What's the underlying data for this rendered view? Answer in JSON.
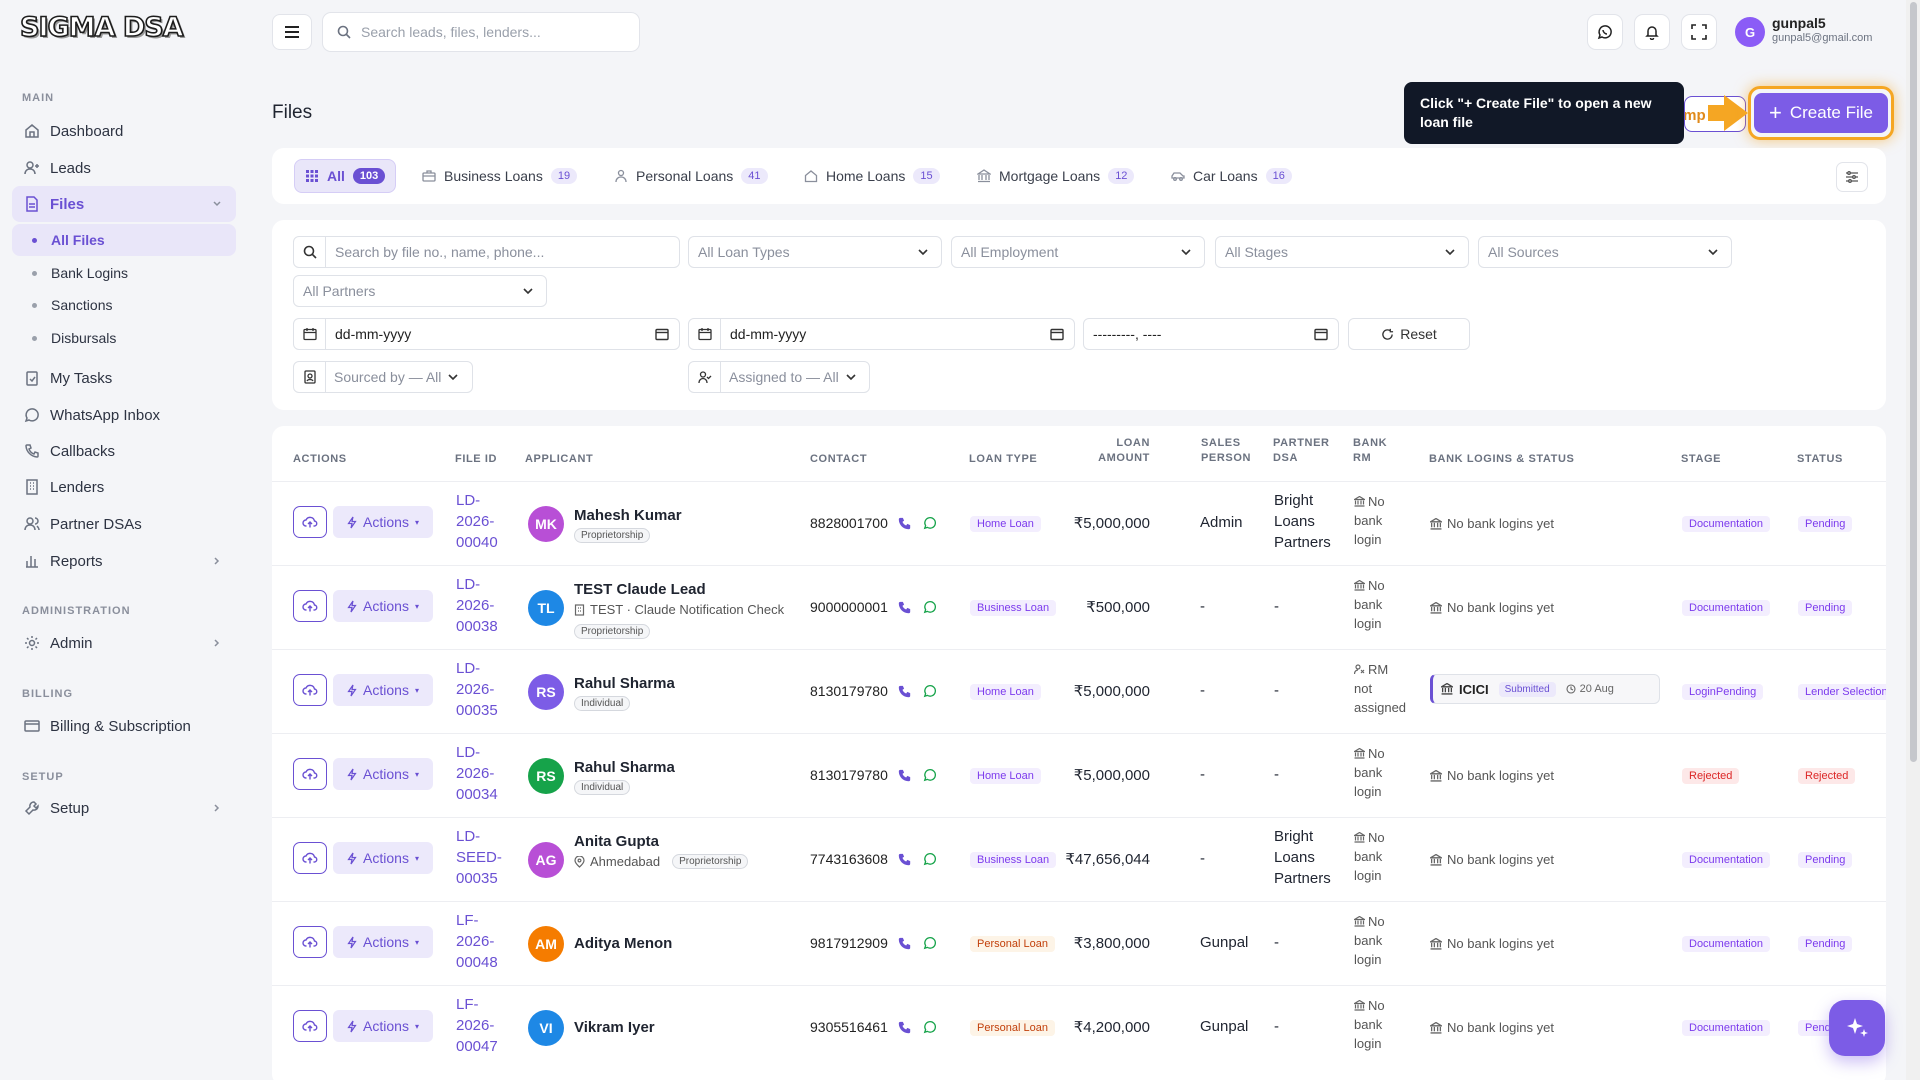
{
  "brand": {
    "logo_text": "SIGMA DSA"
  },
  "sidebar": {
    "sections": {
      "main": "MAIN",
      "administration": "ADMINISTRATION",
      "billing": "BILLING",
      "setup": "SETUP"
    },
    "items": {
      "dashboard": "Dashboard",
      "leads": "Leads",
      "files": "Files",
      "all_files": "All Files",
      "bank_logins": "Bank Logins",
      "sanctions": "Sanctions",
      "disbursals": "Disbursals",
      "my_tasks": "My Tasks",
      "whatsapp_inbox": "WhatsApp Inbox",
      "callbacks": "Callbacks",
      "lenders": "Lenders",
      "partner_dsas": "Partner DSAs",
      "reports": "Reports",
      "admin": "Admin",
      "billing_subscription": "Billing & Subscription",
      "setup": "Setup"
    }
  },
  "topbar": {
    "search_placeholder": "Search leads, files, lenders...",
    "user": {
      "initial": "G",
      "name": "gunpal5",
      "email": "gunpal5@gmail.com"
    }
  },
  "page": {
    "title": "Files",
    "import_label": "Imp",
    "create_label": "Create File",
    "tooltip": "Click \"+ Create File\" to open a new loan file"
  },
  "tabs": [
    {
      "label": "All",
      "count": "103"
    },
    {
      "label": "Business Loans",
      "count": "19"
    },
    {
      "label": "Personal Loans",
      "count": "41"
    },
    {
      "label": "Home Loans",
      "count": "15"
    },
    {
      "label": "Mortgage Loans",
      "count": "12"
    },
    {
      "label": "Car Loans",
      "count": "16"
    }
  ],
  "filters": {
    "search_placeholder": "Search by file no., name, phone...",
    "loan_types": "All Loan Types",
    "employment": "All Employment",
    "stages": "All Stages",
    "sources": "All Sources",
    "partners": "All Partners",
    "date_from": "dd-mm-yyyy",
    "date_to": "dd-mm-yyyy",
    "month": "---------, ----",
    "reset": "Reset",
    "sourced_by": "Sourced by — All",
    "assigned_to": "Assigned to — All"
  },
  "table": {
    "headers": {
      "actions": "ACTIONS",
      "file_id": "FILE ID",
      "applicant": "APPLICANT",
      "contact": "CONTACT",
      "loan_type": "LOAN TYPE",
      "loan_amount_1": "LOAN",
      "loan_amount_2": "AMOUNT",
      "sales_person_1": "SALES",
      "sales_person_2": "PERSON",
      "partner_dsa_1": "PARTNER",
      "partner_dsa_2": "DSA",
      "bank_rm_1": "BANK",
      "bank_rm_2": "RM",
      "bank_logins_status": "BANK LOGINS & STATUS",
      "stage": "STAGE",
      "status": "STATUS"
    },
    "actions_label": "Actions",
    "rows": [
      {
        "id1": "LD-",
        "id2": "2026-",
        "id3": "00040",
        "initials": "MK",
        "avatar_color": "#b84fd6",
        "name": "Mahesh Kumar",
        "sub": "",
        "tag": "Proprietorship",
        "phone": "8828001700",
        "loan_type": "Home Loan",
        "amount": "₹5,000,000",
        "sales": "Admin",
        "partner1": "Bright",
        "partner2": "Loans",
        "partner3": "Partners",
        "rm1": "No",
        "rm2": "bank",
        "rm3": "login",
        "bank_logins": "No bank logins yet",
        "stage": "Documentation",
        "status": "Pending"
      },
      {
        "id1": "LD-",
        "id2": "2026-",
        "id3": "00038",
        "initials": "TL",
        "avatar_color": "#1e88e5",
        "name": "TEST Claude Lead",
        "sub": "TEST · Claude Notification Check",
        "tag": "Proprietorship",
        "phone": "9000000001",
        "loan_type": "Business Loan",
        "amount": "₹500,000",
        "sales": "-",
        "partner1": "-",
        "partner2": "",
        "partner3": "",
        "rm1": "No",
        "rm2": "bank",
        "rm3": "login",
        "bank_logins": "No bank logins yet",
        "stage": "Documentation",
        "status": "Pending"
      },
      {
        "id1": "LD-",
        "id2": "2026-",
        "id3": "00035",
        "initials": "RS",
        "avatar_color": "#7c5ce6",
        "name": "Rahul Sharma",
        "sub": "",
        "tag": "Individual",
        "phone": "8130179780",
        "loan_type": "Home Loan",
        "amount": "₹5,000,000",
        "sales": "-",
        "partner1": "-",
        "partner2": "",
        "partner3": "",
        "rm1": "RM",
        "rm2": "not",
        "rm3": "assigned",
        "bank_name": "ICICI",
        "bank_status": "Submitted",
        "bank_date": "20 Aug",
        "stage": "LoginPending",
        "status": "Lender Selection"
      },
      {
        "id1": "LD-",
        "id2": "2026-",
        "id3": "00034",
        "initials": "RS",
        "avatar_color": "#16a34a",
        "name": "Rahul Sharma",
        "sub": "",
        "tag": "Individual",
        "phone": "8130179780",
        "loan_type": "Home Loan",
        "amount": "₹5,000,000",
        "sales": "-",
        "partner1": "-",
        "partner2": "",
        "partner3": "",
        "rm1": "No",
        "rm2": "bank",
        "rm3": "login",
        "bank_logins": "No bank logins yet",
        "stage": "Rejected",
        "status": "Rejected"
      },
      {
        "id1": "LD-",
        "id2": "SEED-",
        "id3": "00035",
        "initials": "AG",
        "avatar_color": "#b84fd6",
        "name": "Anita Gupta",
        "sub": "Ahmedabad",
        "tag": "Proprietorship",
        "phone": "7743163608",
        "loan_type": "Business Loan",
        "amount": "₹47,656,044",
        "sales": "-",
        "partner1": "Bright",
        "partner2": "Loans",
        "partner3": "Partners",
        "rm1": "No",
        "rm2": "bank",
        "rm3": "login",
        "bank_logins": "No bank logins yet",
        "stage": "Documentation",
        "status": "Pending"
      },
      {
        "id1": "LF-",
        "id2": "2026-",
        "id3": "00048",
        "initials": "AM",
        "avatar_color": "#f57c00",
        "name": "Aditya Menon",
        "sub": "",
        "tag": "",
        "phone": "9817912909",
        "loan_type": "Personal Loan",
        "amount": "₹3,800,000",
        "sales": "Gunpal",
        "partner1": "-",
        "partner2": "",
        "partner3": "",
        "rm1": "No",
        "rm2": "bank",
        "rm3": "login",
        "bank_logins": "No bank logins yet",
        "stage": "Documentation",
        "status": "Pending"
      },
      {
        "id1": "LF-",
        "id2": "2026-",
        "id3": "00047",
        "initials": "VI",
        "avatar_color": "#1e88e5",
        "name": "Vikram Iyer",
        "sub": "",
        "tag": "",
        "phone": "9305516461",
        "loan_type": "Personal Loan",
        "amount": "₹4,200,000",
        "sales": "Gunpal",
        "partner1": "-",
        "partner2": "",
        "partner3": "",
        "rm1": "No",
        "rm2": "bank",
        "rm3": "login",
        "bank_logins": "No bank logins yet",
        "stage": "Documentation",
        "status": "Pending"
      }
    ]
  }
}
